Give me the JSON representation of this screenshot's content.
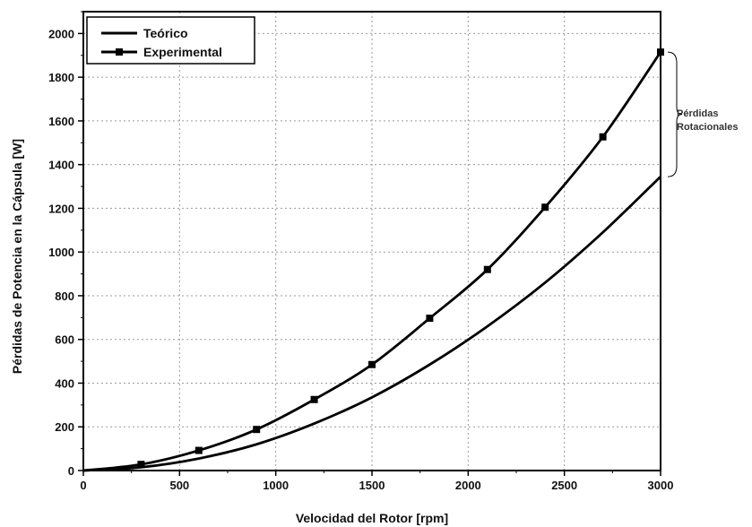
{
  "chart_data": {
    "type": "line",
    "xlabel": "Velocidad del Rotor [rpm]",
    "ylabel": "Pérdidas de Potencia en la Cápsula [W]",
    "xlim": [
      0,
      3000
    ],
    "ylim": [
      0,
      2100
    ],
    "xticks": [
      0,
      500,
      1000,
      1500,
      2000,
      2500,
      3000
    ],
    "yticks": [
      0,
      200,
      400,
      600,
      800,
      1000,
      1200,
      1400,
      1600,
      1800,
      2000
    ],
    "grid": true,
    "legend_position": "top-left",
    "series": [
      {
        "name": "Teórico",
        "marker": "none",
        "color": "#000000",
        "x": [
          0,
          300,
          600,
          900,
          1200,
          1500,
          1800,
          2100,
          2400,
          2700,
          3000
        ],
        "y": [
          0,
          15,
          55,
          120,
          215,
          335,
          485,
          660,
          860,
          1090,
          1345
        ]
      },
      {
        "name": "Experimental",
        "marker": "square",
        "color": "#000000",
        "x": [
          0,
          300,
          600,
          900,
          1200,
          1500,
          1800,
          2100,
          2400,
          2700,
          3000
        ],
        "y": [
          0,
          28,
          92,
          188,
          325,
          485,
          697,
          920,
          1205,
          1527,
          1915
        ]
      }
    ],
    "annotations": [
      {
        "text_lines": [
          "Pérdidas",
          "Rotacionales"
        ],
        "y_range": [
          1345,
          1915
        ],
        "at_x": 3000
      }
    ]
  }
}
